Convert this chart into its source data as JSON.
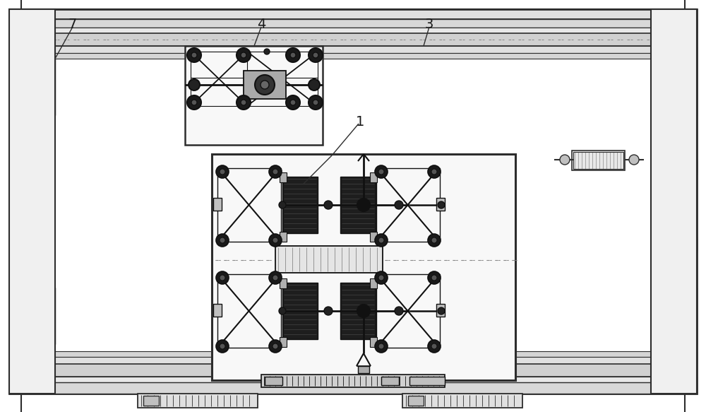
{
  "bg_color": "#ffffff",
  "lc": "#2d2d2d",
  "dc": "#111111",
  "gc": "#888888",
  "fig_width": 10.0,
  "fig_height": 5.83,
  "dpi": 100
}
